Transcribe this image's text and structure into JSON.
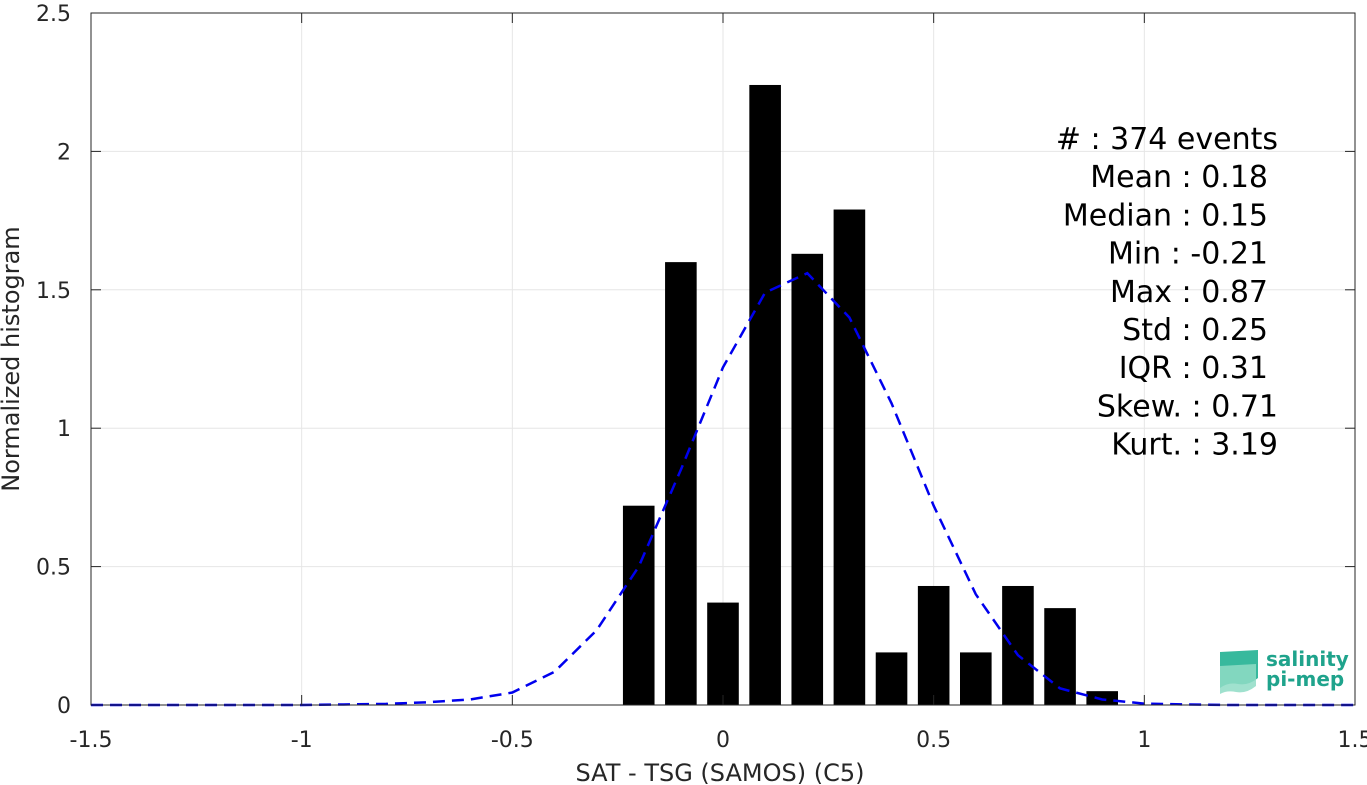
{
  "chart_data": {
    "type": "bar",
    "xlabel": "SAT - TSG (SAMOS) (C5)",
    "ylabel": "Normalized histogram",
    "xlim": [
      -1.5,
      1.5
    ],
    "ylim": [
      0,
      2.5
    ],
    "grid": true,
    "x_ticks": [
      -1.5,
      -1,
      -0.5,
      0,
      0.5,
      1,
      1.5
    ],
    "x_tick_labels": [
      "-1.5",
      "-1",
      "-0.5",
      "0",
      "0.5",
      "1",
      "1.5"
    ],
    "y_ticks": [
      0,
      0.5,
      1,
      1.5,
      2,
      2.5
    ],
    "y_tick_labels": [
      "0",
      "0.5",
      "1",
      "1.5",
      "2",
      "2.5"
    ],
    "bar_width": 0.075,
    "bars": {
      "x": [
        -0.2,
        -0.1,
        0.0,
        0.1,
        0.2,
        0.3,
        0.4,
        0.5,
        0.6,
        0.7,
        0.8,
        0.9
      ],
      "values": [
        0.72,
        1.6,
        0.37,
        2.24,
        1.63,
        1.79,
        0.19,
        0.43,
        0.19,
        0.43,
        0.35,
        0.05
      ],
      "color": "#000000"
    },
    "fit_curve": {
      "style": "dashed",
      "color": "#0000ee",
      "x": [
        -1.5,
        -1.4,
        -1.3,
        -1.2,
        -1.1,
        -1.0,
        -0.9,
        -0.8,
        -0.7,
        -0.6,
        -0.5,
        -0.4,
        -0.3,
        -0.2,
        -0.1,
        0.0,
        0.1,
        0.2,
        0.3,
        0.4,
        0.5,
        0.6,
        0.7,
        0.8,
        0.9,
        1.0,
        1.1,
        1.2,
        1.3,
        1.4,
        1.5
      ],
      "y": [
        0,
        0,
        0,
        0,
        0,
        0,
        0.002,
        0.004,
        0.01,
        0.02,
        0.045,
        0.12,
        0.27,
        0.5,
        0.85,
        1.22,
        1.49,
        1.56,
        1.4,
        1.09,
        0.72,
        0.4,
        0.18,
        0.06,
        0.02,
        0.005,
        0.002,
        0,
        0,
        0,
        0
      ]
    },
    "annotation": [
      "#  : 374 events",
      "Mean : 0.18",
      "Median : 0.15",
      "Min : -0.21",
      "Max : 0.87",
      "Std : 0.25",
      "IQR : 0.31",
      "Skew. : 0.71",
      "Kurt. : 3.19"
    ]
  },
  "logo": {
    "line1": "salinity",
    "line2": "pi-mep"
  }
}
